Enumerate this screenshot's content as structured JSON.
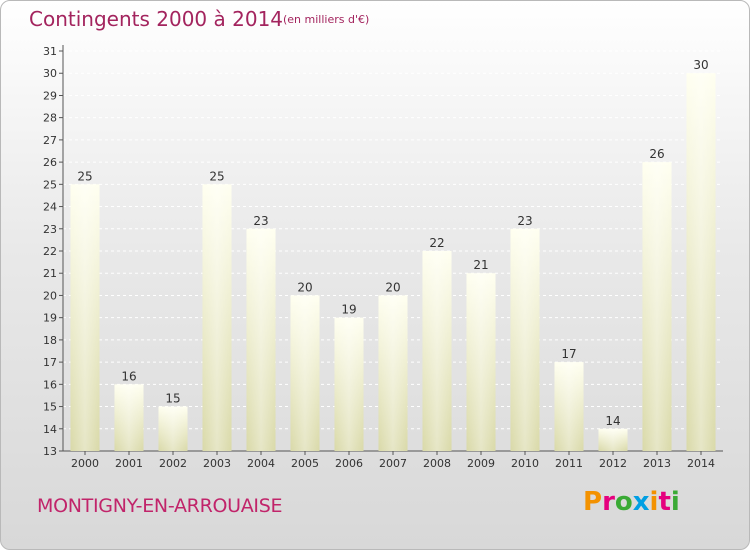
{
  "chart_data": {
    "type": "bar",
    "title": "Contingents 2000 à 2014",
    "subtitle": "(en milliers d'€)",
    "categories": [
      "2000",
      "2001",
      "2002",
      "2003",
      "2004",
      "2005",
      "2006",
      "2007",
      "2008",
      "2009",
      "2010",
      "2011",
      "2012",
      "2013",
      "2014"
    ],
    "values": [
      25,
      16,
      15,
      25,
      23,
      20,
      19,
      20,
      22,
      21,
      23,
      17,
      14,
      26,
      30
    ],
    "ylim": [
      13,
      31
    ],
    "yticks": [
      13,
      14,
      15,
      16,
      17,
      18,
      19,
      20,
      21,
      22,
      23,
      24,
      25,
      26,
      27,
      28,
      29,
      30,
      31
    ],
    "grid": true,
    "xlabel": "",
    "ylabel": ""
  },
  "footer": {
    "place": "MONTIGNY-EN-ARROUAISE",
    "logo": "Proxiti"
  },
  "colors": {
    "title": "#a3245e",
    "bar_top": "#fffff0",
    "bar_bottom": "#d9d9a8",
    "logo_letters": [
      "#f39200",
      "#e5007e",
      "#3aaa35",
      "#009fe3",
      "#f39200",
      "#e5007e",
      "#3aaa35"
    ]
  }
}
